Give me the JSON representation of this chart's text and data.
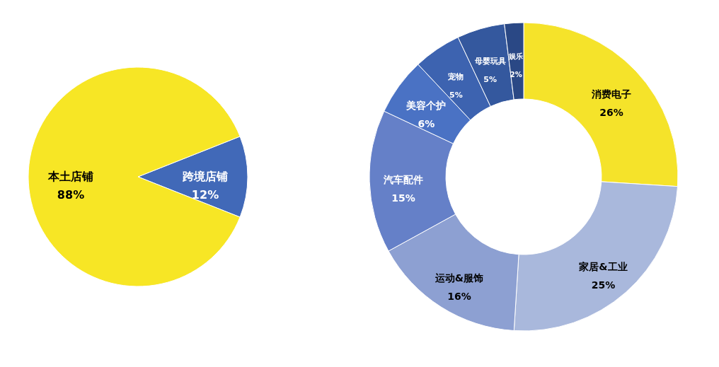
{
  "chart_data": [
    {
      "type": "pie",
      "categories": [
        "跨境店铺",
        "本土店铺"
      ],
      "values": [
        12,
        88
      ],
      "colors": [
        "#4169b8",
        "#f7e625"
      ],
      "value_labels": [
        "12%",
        "88%"
      ],
      "legend": false
    },
    {
      "type": "donut",
      "categories": [
        "消费电子",
        "家居&工业",
        "运动&服饰",
        "汽车配件",
        "美容个护",
        "宠物",
        "母婴玩具",
        "娱乐"
      ],
      "values": [
        26,
        25,
        16,
        15,
        6,
        5,
        5,
        2
      ],
      "colors": [
        "#f5e32a",
        "#a9b8dc",
        "#8da0d2",
        "#6580c8",
        "#4a72c4",
        "#3d63b0",
        "#34589e",
        "#2a4885"
      ],
      "value_labels": [
        "26%",
        "25%",
        "16%",
        "15%",
        "6%",
        "5%",
        "5%",
        "2%"
      ],
      "legend": false
    }
  ]
}
